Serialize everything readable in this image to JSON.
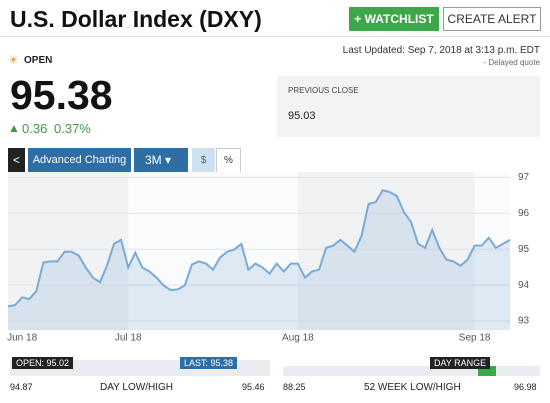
{
  "header": {
    "title": "U.S. Dollar Index (DXY)",
    "watchlist_button": "+ WATCHLIST",
    "alert_button": "CREATE ALERT"
  },
  "status": {
    "market_state": "OPEN",
    "last_updated": "Last Updated: Sep 7, 2018 at 3:13 p.m. EDT",
    "delay_note": "- Delayed quote"
  },
  "quote": {
    "price": "95.38",
    "change": "0.36",
    "change_percent": "0.37%",
    "previous_close_label": "PREVIOUS CLOSE",
    "previous_close": "95.03"
  },
  "toolbar": {
    "back": "<",
    "advanced": "Advanced Charting",
    "period": "3M",
    "dollar": "$",
    "percent": "%"
  },
  "chart_data": {
    "type": "line",
    "color": "#7aaad6",
    "categories": [
      null,
      null,
      "Jun 18",
      null,
      null,
      null,
      null,
      null,
      null,
      null,
      null,
      null,
      null,
      null,
      null,
      null,
      null,
      "Jul 18",
      null,
      null,
      null,
      null,
      null,
      null,
      null,
      null,
      null,
      null,
      null,
      null,
      null,
      null,
      null,
      null,
      null,
      null,
      null,
      null,
      null,
      null,
      null,
      "Aug 18",
      null,
      null,
      null,
      null,
      null,
      null,
      null,
      null,
      null,
      null,
      null,
      null,
      null,
      null,
      null,
      null,
      null,
      null,
      null,
      null,
      null,
      null,
      null,
      null,
      "Sep 18",
      null,
      null,
      null,
      null,
      null
    ],
    "values": [
      93.41,
      93.44,
      93.66,
      93.61,
      93.83,
      94.63,
      94.66,
      94.66,
      94.93,
      94.93,
      94.82,
      94.49,
      94.21,
      94.08,
      94.54,
      95.15,
      95.26,
      94.49,
      94.9,
      94.49,
      94.38,
      94.21,
      93.99,
      93.86,
      93.88,
      93.99,
      94.57,
      94.66,
      94.6,
      94.43,
      94.77,
      94.93,
      94.99,
      95.15,
      94.43,
      94.6,
      94.49,
      94.32,
      94.6,
      94.38,
      94.6,
      94.6,
      94.21,
      94.38,
      94.43,
      95.04,
      95.1,
      95.26,
      95.1,
      94.93,
      95.37,
      96.26,
      96.31,
      96.64,
      96.59,
      96.48,
      96.03,
      95.76,
      95.15,
      95.04,
      95.54,
      95.04,
      94.71,
      94.66,
      94.54,
      94.71,
      95.1,
      95.1,
      95.32,
      95.04,
      95.15,
      95.26
    ],
    "ylim": [
      92.75,
      97.15
    ],
    "yticks": [
      93,
      94,
      95,
      96,
      97
    ],
    "grid": true
  },
  "day_range": {
    "open_marker": "OPEN: 95.02",
    "last_marker": "LAST: 95.38",
    "low": "94.87",
    "high": "95.46",
    "label": "DAY LOW/HIGH"
  },
  "week52_range": {
    "marker": "DAY RANGE",
    "low": "88.25",
    "high": "96.98",
    "label": "52 WEEK LOW/HIGH"
  }
}
